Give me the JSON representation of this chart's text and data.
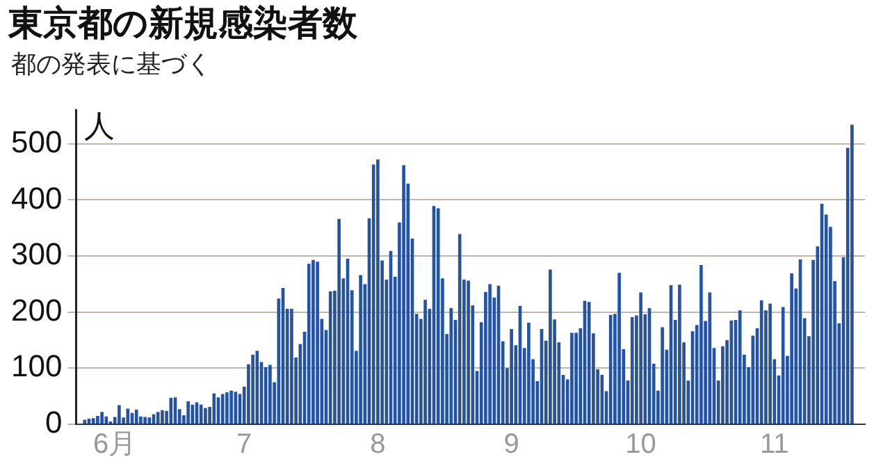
{
  "chart_data": {
    "type": "bar",
    "title": "東京都の新規感染者数",
    "subtitle": "都の発表に基づく",
    "ylabel": "人",
    "x": [
      "--05-25",
      "--05-26",
      "--05-27",
      "--05-28",
      "--05-29",
      "--05-30",
      "--05-31",
      "--06-01",
      "--06-02",
      "--06-03",
      "--06-04",
      "--06-05",
      "--06-06",
      "--06-07",
      "--06-08",
      "--06-09",
      "--06-10",
      "--06-11",
      "--06-12",
      "--06-13",
      "--06-14",
      "--06-15",
      "--06-16",
      "--06-17",
      "--06-18",
      "--06-19",
      "--06-20",
      "--06-21",
      "--06-22",
      "--06-23",
      "--06-24",
      "--06-25",
      "--06-26",
      "--06-27",
      "--06-28",
      "--06-29",
      "--06-30",
      "--07-01",
      "--07-02",
      "--07-03",
      "--07-04",
      "--07-05",
      "--07-06",
      "--07-07",
      "--07-08",
      "--07-09",
      "--07-10",
      "--07-11",
      "--07-12",
      "--07-13",
      "--07-14",
      "--07-15",
      "--07-16",
      "--07-17",
      "--07-18",
      "--07-19",
      "--07-20",
      "--07-21",
      "--07-22",
      "--07-23",
      "--07-24",
      "--07-25",
      "--07-26",
      "--07-27",
      "--07-28",
      "--07-29",
      "--07-30",
      "--07-31",
      "--08-01",
      "--08-02",
      "--08-03",
      "--08-04",
      "--08-05",
      "--08-06",
      "--08-07",
      "--08-08",
      "--08-09",
      "--08-10",
      "--08-11",
      "--08-12",
      "--08-13",
      "--08-14",
      "--08-15",
      "--08-16",
      "--08-17",
      "--08-18",
      "--08-19",
      "--08-20",
      "--08-21",
      "--08-22",
      "--08-23",
      "--08-24",
      "--08-25",
      "--08-26",
      "--08-27",
      "--08-28",
      "--08-29",
      "--08-30",
      "--08-31",
      "--09-01",
      "--09-02",
      "--09-03",
      "--09-04",
      "--09-05",
      "--09-06",
      "--09-07",
      "--09-08",
      "--09-09",
      "--09-10",
      "--09-11",
      "--09-12",
      "--09-13",
      "--09-14",
      "--09-15",
      "--09-16",
      "--09-17",
      "--09-18",
      "--09-19",
      "--09-20",
      "--09-21",
      "--09-22",
      "--09-23",
      "--09-24",
      "--09-25",
      "--09-26",
      "--09-27",
      "--09-28",
      "--09-29",
      "--09-30",
      "--10-01",
      "--10-02",
      "--10-03",
      "--10-04",
      "--10-05",
      "--10-06",
      "--10-07",
      "--10-08",
      "--10-09",
      "--10-10",
      "--10-11",
      "--10-12",
      "--10-13",
      "--10-14",
      "--10-15",
      "--10-16",
      "--10-17",
      "--10-18",
      "--10-19",
      "--10-20",
      "--10-21",
      "--10-22",
      "--10-23",
      "--10-24",
      "--10-25",
      "--10-26",
      "--10-27",
      "--10-28",
      "--10-29",
      "--10-30",
      "--10-31",
      "--11-01",
      "--11-02",
      "--11-03",
      "--11-04",
      "--11-05",
      "--11-06",
      "--11-07",
      "--11-08",
      "--11-09",
      "--11-10",
      "--11-11",
      "--11-12",
      "--11-13",
      "--11-14",
      "--11-15",
      "--11-16",
      "--11-17",
      "--11-18",
      "--11-19"
    ],
    "values": [
      8,
      10,
      11,
      15,
      22,
      14,
      5,
      13,
      34,
      12,
      28,
      20,
      26,
      14,
      13,
      12,
      18,
      22,
      25,
      24,
      47,
      48,
      27,
      16,
      41,
      35,
      39,
      35,
      29,
      31,
      55,
      48,
      54,
      57,
      60,
      58,
      54,
      67,
      107,
      124,
      131,
      111,
      102,
      106,
      75,
      224,
      243,
      206,
      206,
      119,
      143,
      165,
      286,
      293,
      290,
      188,
      168,
      237,
      238,
      366,
      260,
      295,
      239,
      131,
      266,
      250,
      367,
      463,
      472,
      292,
      258,
      309,
      263,
      360,
      462,
      429,
      331,
      197,
      188,
      222,
      206,
      389,
      385,
      260,
      161,
      207,
      186,
      339,
      258,
      256,
      212,
      95,
      182,
      236,
      250,
      226,
      247,
      148,
      100,
      170,
      141,
      211,
      136,
      181,
      116,
      77,
      170,
      149,
      276,
      187,
      146,
      88,
      80,
      163,
      163,
      171,
      220,
      218,
      162,
      98,
      88,
      59,
      195,
      197,
      270,
      134,
      78,
      191,
      194,
      235,
      196,
      207,
      108,
      60,
      173,
      133,
      248,
      186,
      249,
      146,
      78,
      166,
      177,
      284,
      184,
      235,
      136,
      78,
      139,
      150,
      185,
      186,
      203,
      124,
      102,
      158,
      171,
      221,
      203,
      215,
      116,
      87,
      209,
      122,
      269,
      242,
      294,
      189,
      157,
      293,
      317,
      393,
      374,
      352,
      255,
      180,
      298,
      493,
      534
    ],
    "color": "#2553a3",
    "xlim": [
      "--05-23",
      "--11-22"
    ],
    "xticks": [
      {
        "value": "--06-01",
        "label": "6月"
      },
      {
        "value": "--07-01",
        "label": "7"
      },
      {
        "value": "--08-01",
        "label": "8"
      },
      {
        "value": "--09-01",
        "label": "9"
      },
      {
        "value": "--10-01",
        "label": "10"
      },
      {
        "value": "--11-01",
        "label": "11"
      }
    ],
    "ylim": [
      0,
      560
    ],
    "yticks": [
      0,
      100,
      200,
      300,
      400,
      500
    ],
    "grid": "y"
  }
}
